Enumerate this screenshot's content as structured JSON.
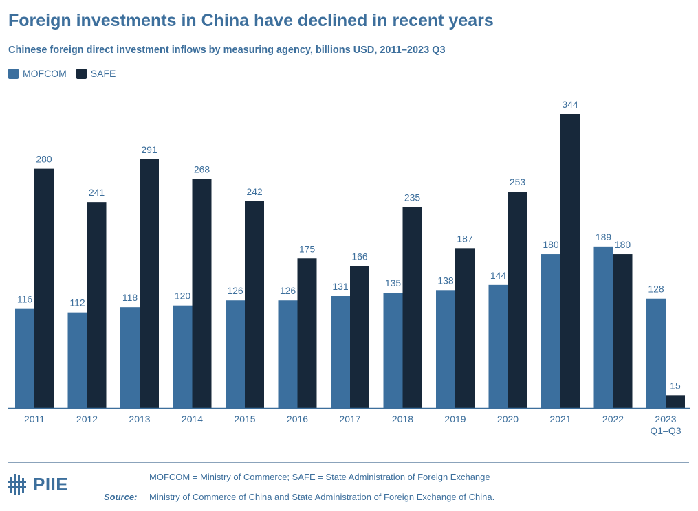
{
  "chart_data": {
    "type": "bar",
    "title": "Foreign investments in China have declined in recent years",
    "subtitle": "Chinese foreign direct investment inflows by measuring agency, billions USD, 2011–2023 Q3",
    "categories": [
      [
        "2011"
      ],
      [
        "2012"
      ],
      [
        "2013"
      ],
      [
        "2014"
      ],
      [
        "2015"
      ],
      [
        "2016"
      ],
      [
        "2017"
      ],
      [
        "2018"
      ],
      [
        "2019"
      ],
      [
        "2020"
      ],
      [
        "2021"
      ],
      [
        "2022"
      ],
      [
        "2023",
        "Q1–Q3"
      ]
    ],
    "series": [
      {
        "name": "MOFCOM",
        "color": "#3b6f9e",
        "values": [
          116,
          112,
          118,
          120,
          126,
          126,
          131,
          135,
          138,
          144,
          180,
          189,
          128
        ]
      },
      {
        "name": "SAFE",
        "color": "#17283a",
        "values": [
          280,
          241,
          291,
          268,
          242,
          175,
          166,
          235,
          187,
          253,
          344,
          180,
          15
        ]
      }
    ],
    "ylim": [
      0,
      344
    ],
    "grid": false,
    "legend_position": "top-left",
    "data_labels": true
  },
  "footer": {
    "logo_text": "PIIE",
    "note": "MOFCOM = Ministry of Commerce; SAFE = State Administration of Foreign Exchange",
    "source_label": "Source:",
    "source_text": "Ministry of Commerce of China and State Administration of Foreign Exchange of China."
  },
  "colors": {
    "text": "#3d6f9c",
    "axis": "#3d6f9c"
  }
}
